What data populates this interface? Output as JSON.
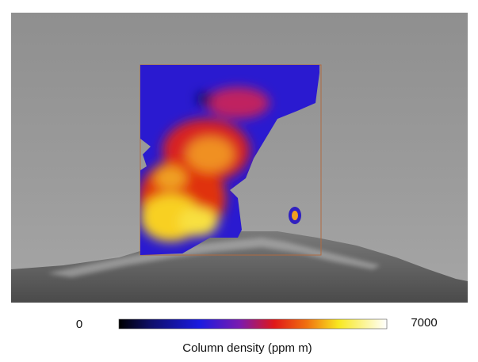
{
  "colorbar": {
    "min": 0,
    "max": 7000,
    "label": "Column density (ppm m)"
  }
}
